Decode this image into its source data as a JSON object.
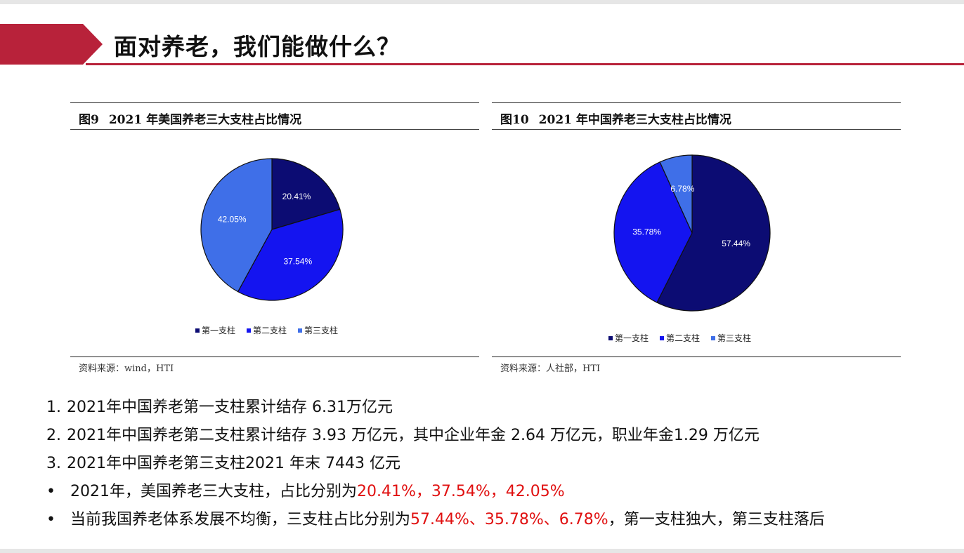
{
  "title": "面对养老，我们能做什么？",
  "accent_color": "#b8223a",
  "figures": [
    {
      "label": "图9",
      "caption": "2021 年美国养老三大支柱占比情况",
      "source": "资料来源：wind，HTI"
    },
    {
      "label": "图10",
      "caption": "2021 年中国养老三大支柱占比情况",
      "source": "资料来源：人社部，HTI"
    }
  ],
  "chart_data": [
    {
      "type": "pie",
      "title": "2021 年美国养老三大支柱占比情况",
      "labels": [
        "第一支柱",
        "第二支柱",
        "第三支柱"
      ],
      "values": [
        20.41,
        37.54,
        42.05
      ],
      "data_labels": [
        "20.41%",
        "37.54%",
        "42.05%"
      ],
      "colors": [
        "#0c0c73",
        "#1414f0",
        "#3f6fe8"
      ],
      "legend_position": "bottom"
    },
    {
      "type": "pie",
      "title": "2021 年中国养老三大支柱占比情况",
      "labels": [
        "第一支柱",
        "第二支柱",
        "第三支柱"
      ],
      "values": [
        57.44,
        35.78,
        6.78
      ],
      "data_labels": [
        "57.44%",
        "35.78%",
        "6.78%"
      ],
      "colors": [
        "#0c0c73",
        "#1414f0",
        "#3f6fe8"
      ],
      "legend_position": "bottom"
    }
  ],
  "bullets": [
    {
      "marker": "1.",
      "segments": [
        {
          "text": "2021年中国养老第一支柱累计结存 6.31万亿元",
          "red": false
        }
      ]
    },
    {
      "marker": "2.",
      "segments": [
        {
          "text": "2021年中国养老第二支柱累计结存 3.93 万亿元，其中企业年金 2.64 万亿元，职业年金1.29 万亿元",
          "red": false
        }
      ]
    },
    {
      "marker": "3.",
      "segments": [
        {
          "text": "2021年中国养老第三支柱2021 年末 7443 亿元",
          "red": false
        }
      ]
    },
    {
      "marker": "•",
      "segments": [
        {
          "text": "2021年，美国养老三大支柱，占比分别为",
          "red": false
        },
        {
          "text": "20.41%，37.54%，42.05%",
          "red": true
        }
      ]
    },
    {
      "marker": "•",
      "segments": [
        {
          "text": "当前我国养老体系发展不均衡，三支柱占比分别为",
          "red": false
        },
        {
          "text": "57.44%、35.78%、6.78%",
          "red": true
        },
        {
          "text": "，第一支柱独大，第三支柱落后",
          "red": false
        }
      ]
    }
  ]
}
